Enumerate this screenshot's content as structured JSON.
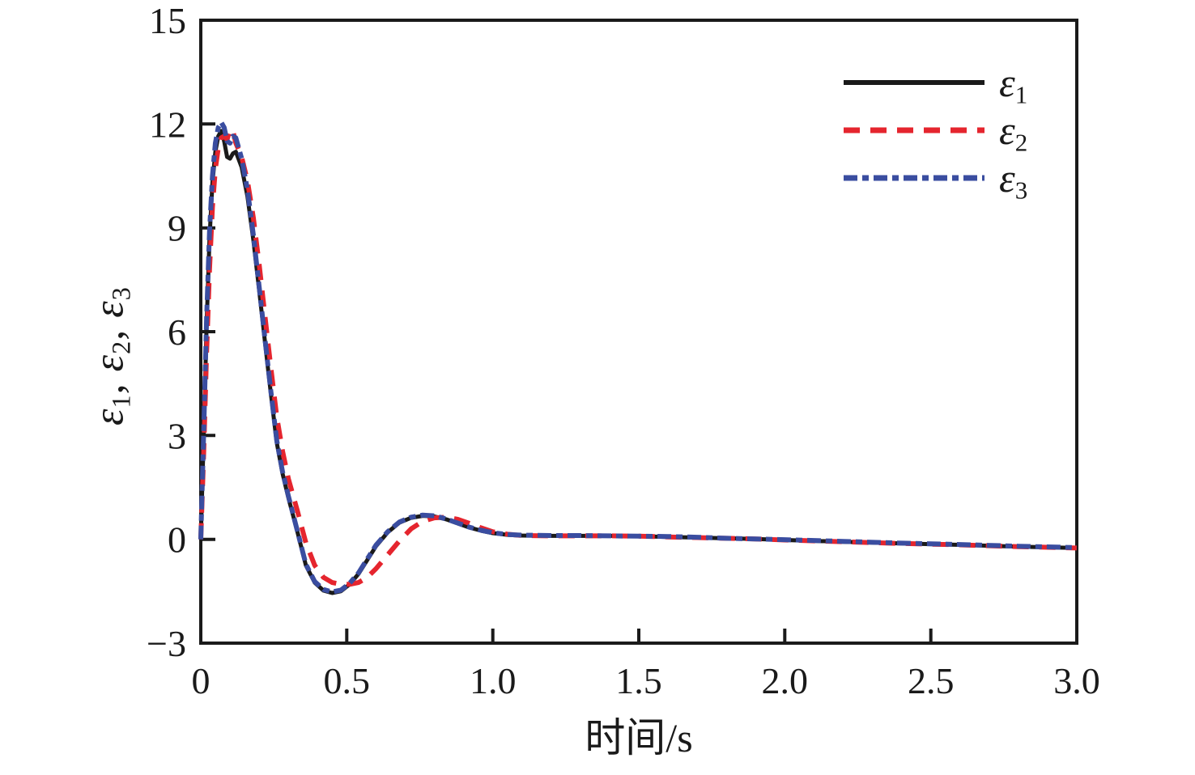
{
  "figure": {
    "background": "#ffffff"
  },
  "axes": {
    "x_label": "时间/s",
    "y_label_parts": [
      {
        "symbol": "ε",
        "sub": "1",
        "sep": ", "
      },
      {
        "symbol": "ε",
        "sub": "2",
        "sep": ", "
      },
      {
        "symbol": "ε",
        "sub": "3",
        "sep": ""
      }
    ]
  },
  "legend": {
    "position": "upper-right",
    "items": [
      {
        "symbol": "ε",
        "sub": "1"
      },
      {
        "symbol": "ε",
        "sub": "2"
      },
      {
        "symbol": "ε",
        "sub": "3"
      }
    ]
  },
  "chart_data": {
    "type": "line",
    "title": "",
    "xlabel": "时间/s",
    "ylabel": "ε1, ε2, ε3",
    "xlim": [
      0,
      3.0
    ],
    "ylim": [
      -3,
      15
    ],
    "grid": false,
    "legend_position": "upper right",
    "x_ticks": [
      {
        "v": 0,
        "label": "0"
      },
      {
        "v": 0.5,
        "label": "0.5"
      },
      {
        "v": 1.0,
        "label": "1.0"
      },
      {
        "v": 1.5,
        "label": "1.5"
      },
      {
        "v": 2.0,
        "label": "2.0"
      },
      {
        "v": 2.5,
        "label": "2.5"
      },
      {
        "v": 3.0,
        "label": "3.0"
      }
    ],
    "y_ticks": [
      {
        "v": 15,
        "label": "15"
      },
      {
        "v": 12,
        "label": "12"
      },
      {
        "v": 9,
        "label": "9"
      },
      {
        "v": 6,
        "label": "6"
      },
      {
        "v": 3,
        "label": "3"
      },
      {
        "v": 0,
        "label": "0"
      },
      {
        "v": -3,
        "label": "−3"
      }
    ],
    "x": [
      0,
      0.01,
      0.02,
      0.03,
      0.04,
      0.05,
      0.06,
      0.07,
      0.08,
      0.09,
      0.1,
      0.11,
      0.12,
      0.14,
      0.16,
      0.18,
      0.2,
      0.22,
      0.24,
      0.26,
      0.28,
      0.3,
      0.33,
      0.36,
      0.39,
      0.42,
      0.45,
      0.48,
      0.51,
      0.54,
      0.57,
      0.6,
      0.64,
      0.68,
      0.72,
      0.76,
      0.8,
      0.84,
      0.88,
      0.92,
      0.96,
      1.0,
      1.05,
      1.1,
      1.2,
      1.3,
      1.4,
      1.5,
      1.6,
      1.7,
      1.8,
      1.9,
      2.0,
      2.2,
      2.4,
      2.6,
      2.8,
      3.0
    ],
    "series": [
      {
        "key": "epsilon-1",
        "name": "ε1",
        "color": "#1a1a1a",
        "dash": "",
        "width": 5,
        "values": [
          0,
          3.0,
          6.2,
          8.7,
          10.3,
          11.2,
          11.65,
          11.8,
          11.5,
          11.05,
          11.0,
          11.15,
          11.2,
          10.75,
          9.9,
          8.65,
          7.2,
          5.7,
          4.2,
          2.8,
          1.9,
          1.2,
          0.25,
          -0.75,
          -1.25,
          -1.48,
          -1.55,
          -1.5,
          -1.3,
          -1.0,
          -0.6,
          -0.2,
          0.2,
          0.48,
          0.62,
          0.68,
          0.66,
          0.58,
          0.46,
          0.34,
          0.25,
          0.18,
          0.13,
          0.11,
          0.1,
          0.1,
          0.1,
          0.09,
          0.07,
          0.05,
          0.03,
          0.01,
          -0.02,
          -0.07,
          -0.12,
          -0.16,
          -0.21,
          -0.25
        ]
      },
      {
        "key": "epsilon-2",
        "name": "ε2",
        "color": "#e5252e",
        "dash": "20 13",
        "width": 6,
        "values": [
          0,
          2.5,
          5.4,
          7.8,
          9.6,
          10.7,
          11.3,
          11.6,
          11.65,
          11.55,
          11.85,
          11.8,
          11.45,
          11.05,
          10.35,
          9.3,
          7.95,
          6.45,
          4.95,
          3.55,
          2.55,
          1.75,
          0.85,
          -0.1,
          -0.75,
          -1.1,
          -1.25,
          -1.3,
          -1.3,
          -1.25,
          -1.1,
          -0.85,
          -0.45,
          -0.05,
          0.3,
          0.52,
          0.62,
          0.64,
          0.58,
          0.46,
          0.33,
          0.22,
          0.15,
          0.11,
          0.1,
          0.1,
          0.1,
          0.09,
          0.07,
          0.05,
          0.03,
          0.01,
          -0.02,
          -0.07,
          -0.12,
          -0.16,
          -0.21,
          -0.25
        ]
      },
      {
        "key": "epsilon-3",
        "name": "ε3",
        "color": "#3a4da0",
        "dash": "17 6 8 6",
        "width": 6,
        "values": [
          0,
          3.1,
          6.4,
          8.9,
          10.5,
          11.45,
          11.9,
          12.05,
          11.9,
          11.5,
          11.45,
          11.65,
          11.6,
          11.0,
          10.1,
          8.8,
          7.3,
          5.78,
          4.27,
          2.86,
          1.95,
          1.25,
          0.27,
          -0.72,
          -1.22,
          -1.45,
          -1.52,
          -1.47,
          -1.27,
          -0.97,
          -0.57,
          -0.17,
          0.22,
          0.5,
          0.64,
          0.7,
          0.68,
          0.59,
          0.47,
          0.35,
          0.26,
          0.19,
          0.14,
          0.12,
          0.11,
          0.11,
          0.1,
          0.09,
          0.08,
          0.06,
          0.03,
          0.01,
          -0.01,
          -0.06,
          -0.11,
          -0.15,
          -0.2,
          -0.24
        ]
      }
    ]
  }
}
